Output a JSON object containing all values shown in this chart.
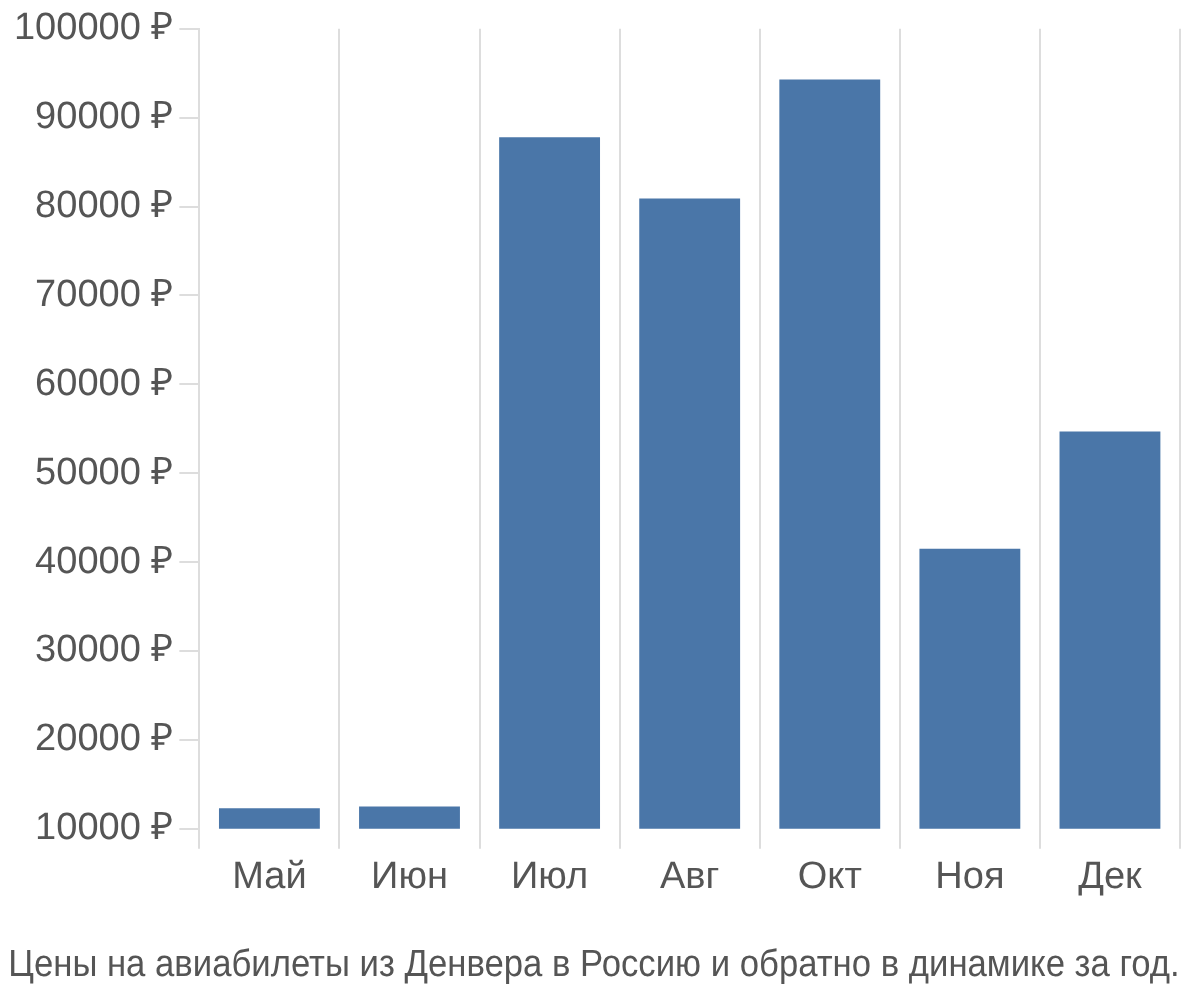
{
  "chart_data": {
    "type": "bar",
    "title": "Цены на авиабилеты из Денвера в Россию и обратно в динамике за год.",
    "categories": [
      "Май",
      "Июн",
      "Июл",
      "Авг",
      "Окт",
      "Ноя",
      "Дек"
    ],
    "values": [
      12300,
      12500,
      87800,
      80900,
      94300,
      41500,
      54700
    ],
    "color": "#4a76a8",
    "ylim": [
      10000,
      100000
    ],
    "yticks": [
      {
        "value": 10000,
        "label": "10000 ₽"
      },
      {
        "value": 20000,
        "label": "20000 ₽"
      },
      {
        "value": 30000,
        "label": "30000 ₽"
      },
      {
        "value": 40000,
        "label": "40000 ₽"
      },
      {
        "value": 50000,
        "label": "50000 ₽"
      },
      {
        "value": 60000,
        "label": "60000 ₽"
      },
      {
        "value": 70000,
        "label": "70000 ₽"
      },
      {
        "value": 80000,
        "label": "80000 ₽"
      },
      {
        "value": 90000,
        "label": "90000 ₽"
      },
      {
        "value": 100000,
        "label": "100000 ₽"
      }
    ],
    "grid": "x"
  }
}
